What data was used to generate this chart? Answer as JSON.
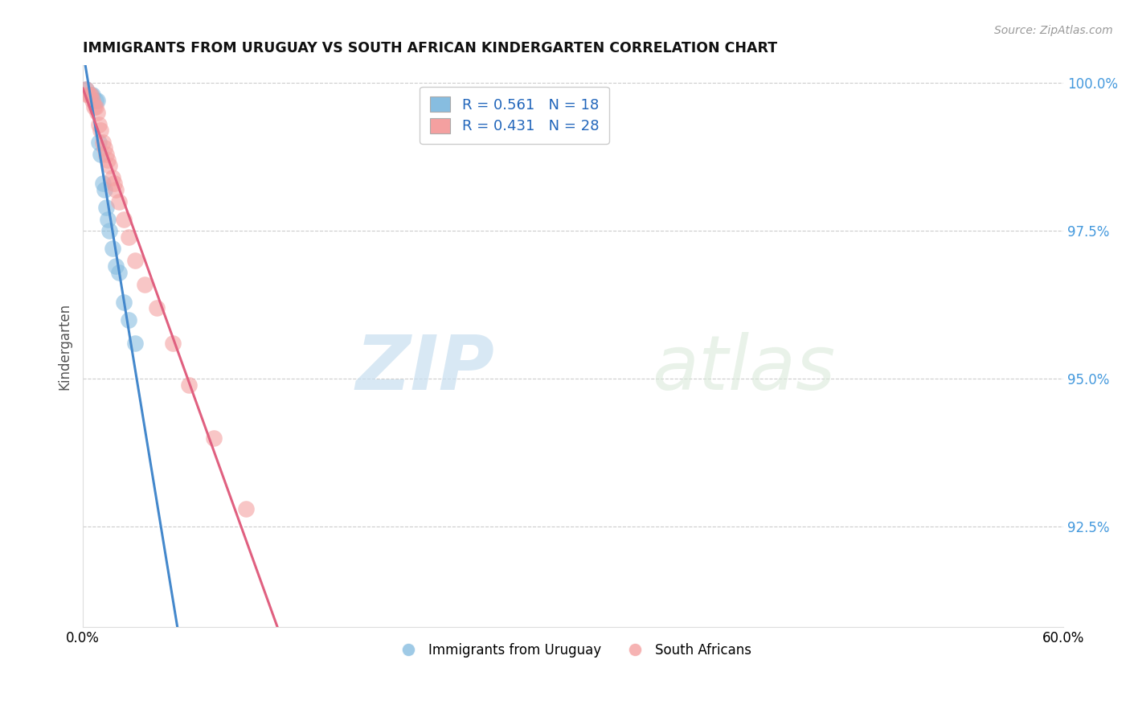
{
  "title": "IMMIGRANTS FROM URUGUAY VS SOUTH AFRICAN KINDERGARTEN CORRELATION CHART",
  "source_text": "Source: ZipAtlas.com",
  "xlabel": "",
  "ylabel": "Kindergarten",
  "xlim": [
    0.0,
    0.6
  ],
  "ylim": [
    0.908,
    1.003
  ],
  "yticks": [
    0.925,
    0.95,
    0.975,
    1.0
  ],
  "ytick_labels": [
    "92.5%",
    "95.0%",
    "97.5%",
    "100.0%"
  ],
  "xticks": [
    0.0,
    0.1,
    0.2,
    0.3,
    0.4,
    0.5,
    0.6
  ],
  "xtick_labels": [
    "0.0%",
    "",
    "",
    "",
    "",
    "",
    "60.0%"
  ],
  "watermark_zip": "ZIP",
  "watermark_atlas": "atlas",
  "blue_R": 0.561,
  "blue_N": 18,
  "pink_R": 0.431,
  "pink_N": 28,
  "blue_color": "#87bde0",
  "pink_color": "#f4a0a0",
  "blue_line_color": "#4488cc",
  "pink_line_color": "#e06080",
  "legend_label_blue": "Immigrants from Uruguay",
  "legend_label_pink": "South Africans",
  "blue_x": [
    0.002,
    0.005,
    0.006,
    0.008,
    0.009,
    0.01,
    0.011,
    0.012,
    0.013,
    0.014,
    0.015,
    0.016,
    0.018,
    0.02,
    0.022,
    0.025,
    0.028,
    0.032
  ],
  "blue_y": [
    0.999,
    0.998,
    0.998,
    0.997,
    0.997,
    0.99,
    0.988,
    0.983,
    0.982,
    0.979,
    0.977,
    0.975,
    0.972,
    0.969,
    0.968,
    0.963,
    0.96,
    0.956
  ],
  "pink_x": [
    0.002,
    0.003,
    0.004,
    0.005,
    0.006,
    0.007,
    0.008,
    0.009,
    0.01,
    0.011,
    0.012,
    0.013,
    0.014,
    0.015,
    0.016,
    0.018,
    0.019,
    0.02,
    0.022,
    0.025,
    0.028,
    0.032,
    0.038,
    0.045,
    0.055,
    0.065,
    0.08,
    0.1
  ],
  "pink_y": [
    0.999,
    0.998,
    0.998,
    0.998,
    0.997,
    0.996,
    0.996,
    0.995,
    0.993,
    0.992,
    0.99,
    0.989,
    0.988,
    0.987,
    0.986,
    0.984,
    0.983,
    0.982,
    0.98,
    0.977,
    0.974,
    0.97,
    0.966,
    0.962,
    0.956,
    0.949,
    0.94,
    0.928
  ]
}
